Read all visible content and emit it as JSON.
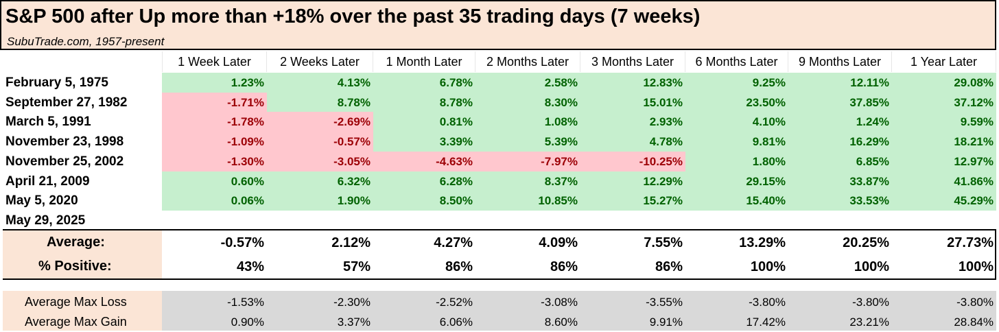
{
  "title": "S&P 500 after Up more than +18% over the past 35 trading days (7 weeks)",
  "subtitle": "SubuTrade.com, 1957-present",
  "chart_data": {
    "type": "table",
    "columns": [
      "1 Week Later",
      "2 Weeks Later",
      "1 Month Later",
      "2 Months Later",
      "3 Months Later",
      "6 Months Later",
      "9 Months Later",
      "1 Year Later"
    ],
    "rows": [
      {
        "label": "February 5, 1975",
        "values": [
          "1.23%",
          "4.13%",
          "6.78%",
          "2.58%",
          "12.83%",
          "9.25%",
          "12.11%",
          "29.08%"
        ]
      },
      {
        "label": "September 27, 1982",
        "values": [
          "-1.71%",
          "8.78%",
          "8.78%",
          "8.30%",
          "15.01%",
          "23.50%",
          "37.85%",
          "37.12%"
        ]
      },
      {
        "label": "March 5, 1991",
        "values": [
          "-1.78%",
          "-2.69%",
          "0.81%",
          "1.08%",
          "2.93%",
          "4.10%",
          "1.24%",
          "9.59%"
        ]
      },
      {
        "label": "November 23, 1998",
        "values": [
          "-1.09%",
          "-0.57%",
          "3.39%",
          "5.39%",
          "4.78%",
          "9.81%",
          "16.29%",
          "18.21%"
        ]
      },
      {
        "label": "November 25, 2002",
        "values": [
          "-1.30%",
          "-3.05%",
          "-4.63%",
          "-7.97%",
          "-10.25%",
          "1.80%",
          "6.85%",
          "12.97%"
        ]
      },
      {
        "label": "April 21, 2009",
        "values": [
          "0.60%",
          "6.32%",
          "6.28%",
          "8.37%",
          "12.29%",
          "29.15%",
          "33.87%",
          "41.86%"
        ]
      },
      {
        "label": "May 5, 2020",
        "values": [
          "0.06%",
          "1.90%",
          "8.50%",
          "10.85%",
          "15.27%",
          "15.40%",
          "33.53%",
          "45.29%"
        ]
      },
      {
        "label": "May 29, 2025",
        "values": [
          "",
          "",
          "",
          "",
          "",
          "",
          "",
          ""
        ]
      }
    ],
    "summary": [
      {
        "label": "Average:",
        "values": [
          "-0.57%",
          "2.12%",
          "4.27%",
          "4.09%",
          "7.55%",
          "13.29%",
          "20.25%",
          "27.73%"
        ]
      },
      {
        "label": "% Positive:",
        "values": [
          "43%",
          "57%",
          "86%",
          "86%",
          "86%",
          "100%",
          "100%",
          "100%"
        ]
      }
    ],
    "max_rows": [
      {
        "label": "Average Max Loss",
        "values": [
          "-1.53%",
          "-2.30%",
          "-2.52%",
          "-3.08%",
          "-3.55%",
          "-3.80%",
          "-3.80%",
          "-3.80%"
        ]
      },
      {
        "label": "Average Max Gain",
        "values": [
          "0.90%",
          "3.37%",
          "6.06%",
          "8.60%",
          "9.91%",
          "17.42%",
          "23.21%",
          "28.84%"
        ]
      }
    ],
    "colors": {
      "positive_bg": "#c6efce",
      "positive_text": "#006100",
      "negative_bg": "#ffc7ce",
      "negative_text": "#9c0006",
      "header_bg": "#fbe5d6",
      "max_bg": "#d9d9d9"
    }
  }
}
